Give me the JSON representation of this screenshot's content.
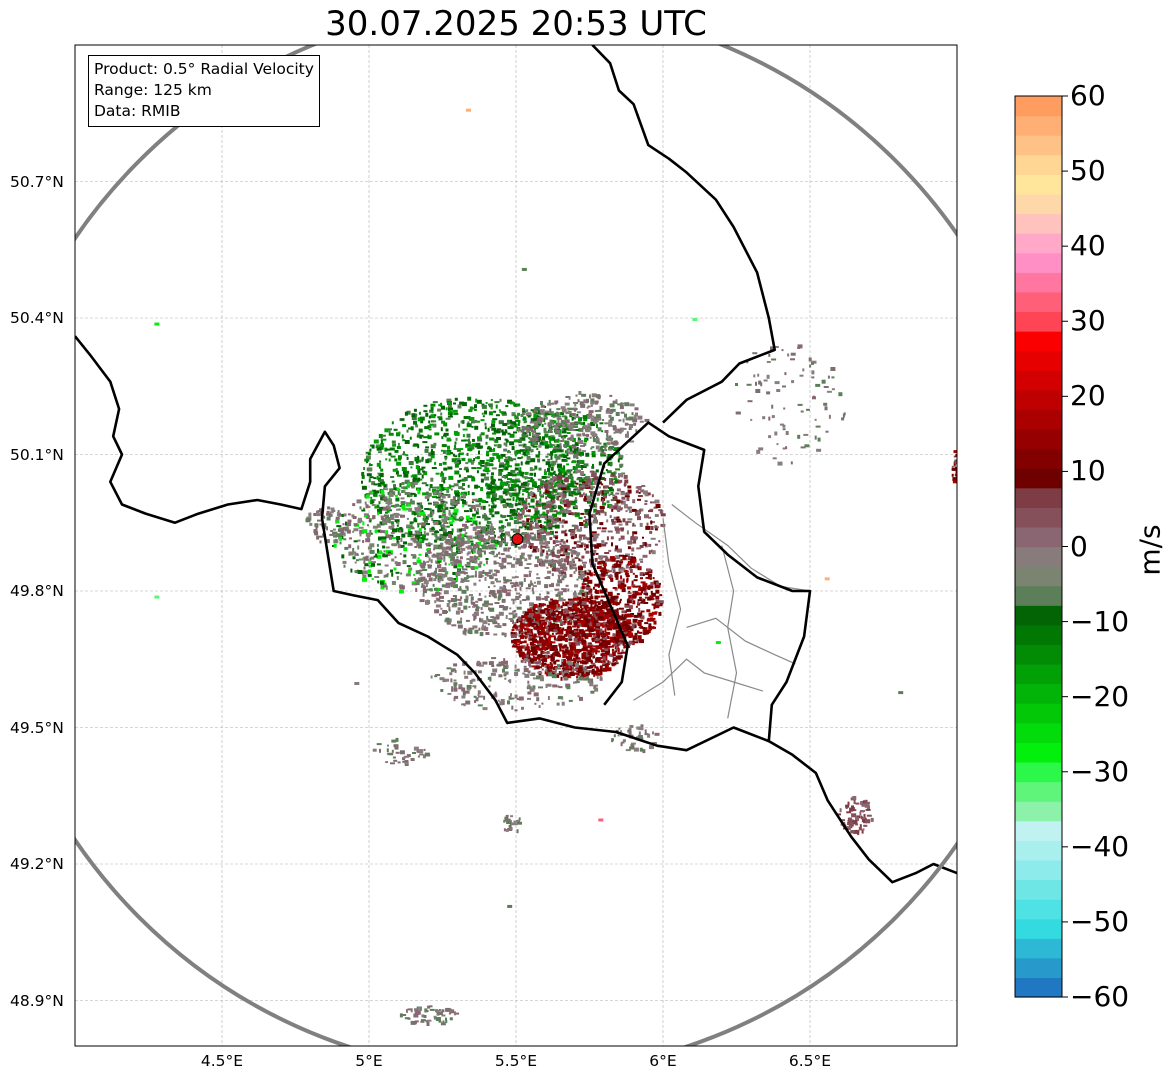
{
  "title": "30.07.2025 20:53 UTC",
  "info": {
    "product": "Product: 0.5° Radial Velocity",
    "range": "Range: 125 km",
    "data": "Data: RMIB"
  },
  "map_extent": {
    "lon_min": 4.0,
    "lon_max": 7.0,
    "lat_min": 48.8,
    "lat_max": 51.0
  },
  "lat_ticks": [
    {
      "value": 50.7,
      "label": "50.7°N"
    },
    {
      "value": 50.4,
      "label": "50.4°N"
    },
    {
      "value": 50.1,
      "label": "50.1°N"
    },
    {
      "value": 49.8,
      "label": "49.8°N"
    },
    {
      "value": 49.5,
      "label": "49.5°N"
    },
    {
      "value": 49.2,
      "label": "49.2°N"
    },
    {
      "value": 48.9,
      "label": "48.9°N"
    }
  ],
  "lon_ticks": [
    {
      "value": 4.5,
      "label": "4.5°E"
    },
    {
      "value": 5.0,
      "label": "5°E"
    },
    {
      "value": 5.5,
      "label": "5.5°E"
    },
    {
      "value": 6.0,
      "label": "6°E"
    },
    {
      "value": 6.5,
      "label": "6.5°E"
    }
  ],
  "radar_site": {
    "lon": 5.505,
    "lat": 49.914,
    "range_km": 125,
    "color": "#e01010"
  },
  "colorbar": {
    "unit": "m/s",
    "min": -60,
    "max": 60,
    "ticks": [
      {
        "value": 60,
        "label": "60"
      },
      {
        "value": 50,
        "label": "50"
      },
      {
        "value": 40,
        "label": "40"
      },
      {
        "value": 30,
        "label": "30"
      },
      {
        "value": 20,
        "label": "20"
      },
      {
        "value": 10,
        "label": "10"
      },
      {
        "value": 0,
        "label": "0"
      },
      {
        "value": -10,
        "label": "−10"
      },
      {
        "value": -20,
        "label": "−20"
      },
      {
        "value": -30,
        "label": "−30"
      },
      {
        "value": -40,
        "label": "−40"
      },
      {
        "value": -50,
        "label": "−50"
      },
      {
        "value": -60,
        "label": "−60"
      }
    ],
    "colors": [
      "#2178c2",
      "#2799cb",
      "#2db9d6",
      "#33dbe0",
      "#4fe2e4",
      "#6fe6e6",
      "#8debeb",
      "#a8efee",
      "#bff2f0",
      "#8cf2aa",
      "#5ef57a",
      "#2cf84a",
      "#03f00c",
      "#02dc0a",
      "#02c808",
      "#02b408",
      "#02a007",
      "#028c06",
      "#027804",
      "#026404",
      "#5c7f5a",
      "#7a8470",
      "#877b7b",
      "#8a6672",
      "#86505a",
      "#7e3c44",
      "#6e0000",
      "#820000",
      "#960000",
      "#aa0000",
      "#be0000",
      "#d20000",
      "#e60000",
      "#fa0000",
      "#ff4455",
      "#ff5f78",
      "#ff77a0",
      "#ff8fc4",
      "#ffa8c8",
      "#ffc2bc",
      "#ffd8aa",
      "#ffe69a",
      "#ffd694",
      "#ffc286",
      "#ffaf74",
      "#ff9c60"
    ]
  },
  "borders": [
    [
      [
        4.0,
        50.36
      ],
      [
        4.05,
        50.32
      ],
      [
        4.12,
        50.26
      ],
      [
        4.15,
        50.2
      ],
      [
        4.13,
        50.14
      ],
      [
        4.16,
        50.1
      ],
      [
        4.12,
        50.04
      ],
      [
        4.16,
        49.99
      ],
      [
        4.24,
        49.97
      ],
      [
        4.34,
        49.95
      ],
      [
        4.42,
        49.97
      ],
      [
        4.52,
        49.99
      ],
      [
        4.62,
        50.0
      ],
      [
        4.7,
        49.99
      ],
      [
        4.77,
        49.98
      ],
      [
        4.8,
        50.04
      ],
      [
        4.8,
        50.09
      ],
      [
        4.85,
        50.15
      ],
      [
        4.88,
        50.12
      ],
      [
        4.9,
        50.07
      ],
      [
        4.85,
        50.03
      ],
      [
        4.84,
        49.96
      ],
      [
        4.86,
        49.88
      ],
      [
        4.88,
        49.8
      ],
      [
        4.95,
        49.79
      ],
      [
        5.03,
        49.78
      ],
      [
        5.1,
        49.73
      ],
      [
        5.2,
        49.7
      ],
      [
        5.3,
        49.66
      ],
      [
        5.36,
        49.62
      ],
      [
        5.43,
        49.56
      ],
      [
        5.47,
        49.51
      ],
      [
        5.58,
        49.52
      ],
      [
        5.7,
        49.5
      ],
      [
        5.84,
        49.49
      ],
      [
        5.98,
        49.46
      ],
      [
        6.08,
        49.45
      ],
      [
        6.24,
        49.5
      ],
      [
        6.36,
        49.47
      ],
      [
        6.44,
        49.44
      ],
      [
        6.52,
        49.4
      ],
      [
        6.56,
        49.34
      ],
      [
        6.64,
        49.26
      ],
      [
        6.7,
        49.21
      ],
      [
        6.78,
        49.16
      ],
      [
        6.86,
        49.18
      ],
      [
        6.92,
        49.2
      ],
      [
        7.0,
        49.18
      ]
    ],
    [
      [
        5.8,
        49.55
      ],
      [
        5.86,
        49.6
      ],
      [
        5.88,
        49.68
      ],
      [
        5.82,
        49.77
      ],
      [
        5.76,
        49.86
      ],
      [
        5.75,
        49.97
      ],
      [
        5.8,
        50.08
      ],
      [
        5.95,
        50.17
      ],
      [
        6.02,
        50.14
      ],
      [
        6.14,
        50.11
      ],
      [
        6.12,
        50.03
      ],
      [
        6.14,
        49.93
      ],
      [
        6.22,
        49.88
      ],
      [
        6.32,
        49.83
      ],
      [
        6.44,
        49.8
      ],
      [
        6.5,
        49.8
      ],
      [
        6.48,
        49.7
      ],
      [
        6.42,
        49.6
      ],
      [
        6.37,
        49.55
      ],
      [
        6.36,
        49.47
      ]
    ],
    [
      [
        6.0,
        50.17
      ],
      [
        6.08,
        50.22
      ],
      [
        6.2,
        50.26
      ],
      [
        6.26,
        50.3
      ],
      [
        6.38,
        50.33
      ],
      [
        6.36,
        50.4
      ],
      [
        6.32,
        50.5
      ],
      [
        6.24,
        50.6
      ],
      [
        6.18,
        50.66
      ],
      [
        6.08,
        50.72
      ],
      [
        6.02,
        50.75
      ],
      [
        5.95,
        50.78
      ],
      [
        5.9,
        50.87
      ],
      [
        5.85,
        50.9
      ],
      [
        5.82,
        50.96
      ],
      [
        5.76,
        51.0
      ]
    ]
  ],
  "regions": [
    [
      [
        6.03,
        49.99
      ],
      [
        6.11,
        49.95
      ],
      [
        6.22,
        49.9
      ],
      [
        6.3,
        49.85
      ],
      [
        6.4,
        49.81
      ],
      [
        6.5,
        49.8
      ]
    ],
    [
      [
        6.08,
        49.72
      ],
      [
        6.18,
        49.74
      ],
      [
        6.28,
        49.69
      ],
      [
        6.38,
        49.66
      ],
      [
        6.45,
        49.64
      ]
    ],
    [
      [
        5.9,
        49.56
      ],
      [
        6.0,
        49.6
      ],
      [
        6.08,
        49.65
      ],
      [
        6.14,
        49.62
      ],
      [
        6.24,
        49.6
      ],
      [
        6.34,
        49.58
      ]
    ],
    [
      [
        6.2,
        49.9
      ],
      [
        6.24,
        49.8
      ],
      [
        6.22,
        49.72
      ],
      [
        6.25,
        49.62
      ],
      [
        6.22,
        49.52
      ]
    ],
    [
      [
        6.0,
        49.96
      ],
      [
        6.02,
        49.86
      ],
      [
        6.06,
        49.76
      ],
      [
        6.02,
        49.66
      ],
      [
        6.04,
        49.57
      ]
    ]
  ],
  "echo_clusters": [
    {
      "lon": 5.35,
      "lat": 50.06,
      "rx": 0.38,
      "ry": 0.17,
      "n": 1100,
      "kind": "green"
    },
    {
      "lon": 5.62,
      "lat": 50.07,
      "rx": 0.24,
      "ry": 0.14,
      "n": 500,
      "kind": "green"
    },
    {
      "lon": 5.15,
      "lat": 49.92,
      "rx": 0.28,
      "ry": 0.12,
      "n": 600,
      "kind": "mixed"
    },
    {
      "lon": 5.45,
      "lat": 49.82,
      "rx": 0.3,
      "ry": 0.12,
      "n": 700,
      "kind": "gray"
    },
    {
      "lon": 5.75,
      "lat": 49.95,
      "rx": 0.25,
      "ry": 0.12,
      "n": 550,
      "kind": "mauve"
    },
    {
      "lon": 5.68,
      "lat": 49.7,
      "rx": 0.2,
      "ry": 0.09,
      "n": 1000,
      "kind": "red"
    },
    {
      "lon": 5.85,
      "lat": 49.78,
      "rx": 0.14,
      "ry": 0.1,
      "n": 450,
      "kind": "red"
    },
    {
      "lon": 5.72,
      "lat": 50.17,
      "rx": 0.22,
      "ry": 0.07,
      "n": 250,
      "kind": "gray"
    },
    {
      "lon": 5.5,
      "lat": 49.6,
      "rx": 0.3,
      "ry": 0.06,
      "n": 200,
      "kind": "gray"
    },
    {
      "lon": 6.65,
      "lat": 49.31,
      "rx": 0.06,
      "ry": 0.04,
      "n": 80,
      "kind": "brown"
    },
    {
      "lon": 5.2,
      "lat": 48.87,
      "rx": 0.1,
      "ry": 0.02,
      "n": 60,
      "kind": "gray"
    },
    {
      "lon": 5.48,
      "lat": 49.29,
      "rx": 0.04,
      "ry": 0.02,
      "n": 25,
      "kind": "gray"
    },
    {
      "lon": 6.99,
      "lat": 50.08,
      "rx": 0.01,
      "ry": 0.04,
      "n": 20,
      "kind": "red"
    },
    {
      "lon": 6.42,
      "lat": 50.22,
      "rx": 0.2,
      "ry": 0.14,
      "n": 90,
      "kind": "gray"
    },
    {
      "lon": 4.85,
      "lat": 49.95,
      "rx": 0.08,
      "ry": 0.04,
      "n": 60,
      "kind": "gray"
    },
    {
      "lon": 5.1,
      "lat": 49.45,
      "rx": 0.1,
      "ry": 0.03,
      "n": 40,
      "kind": "gray"
    },
    {
      "lon": 5.9,
      "lat": 49.48,
      "rx": 0.08,
      "ry": 0.03,
      "n": 40,
      "kind": "gray"
    }
  ]
}
